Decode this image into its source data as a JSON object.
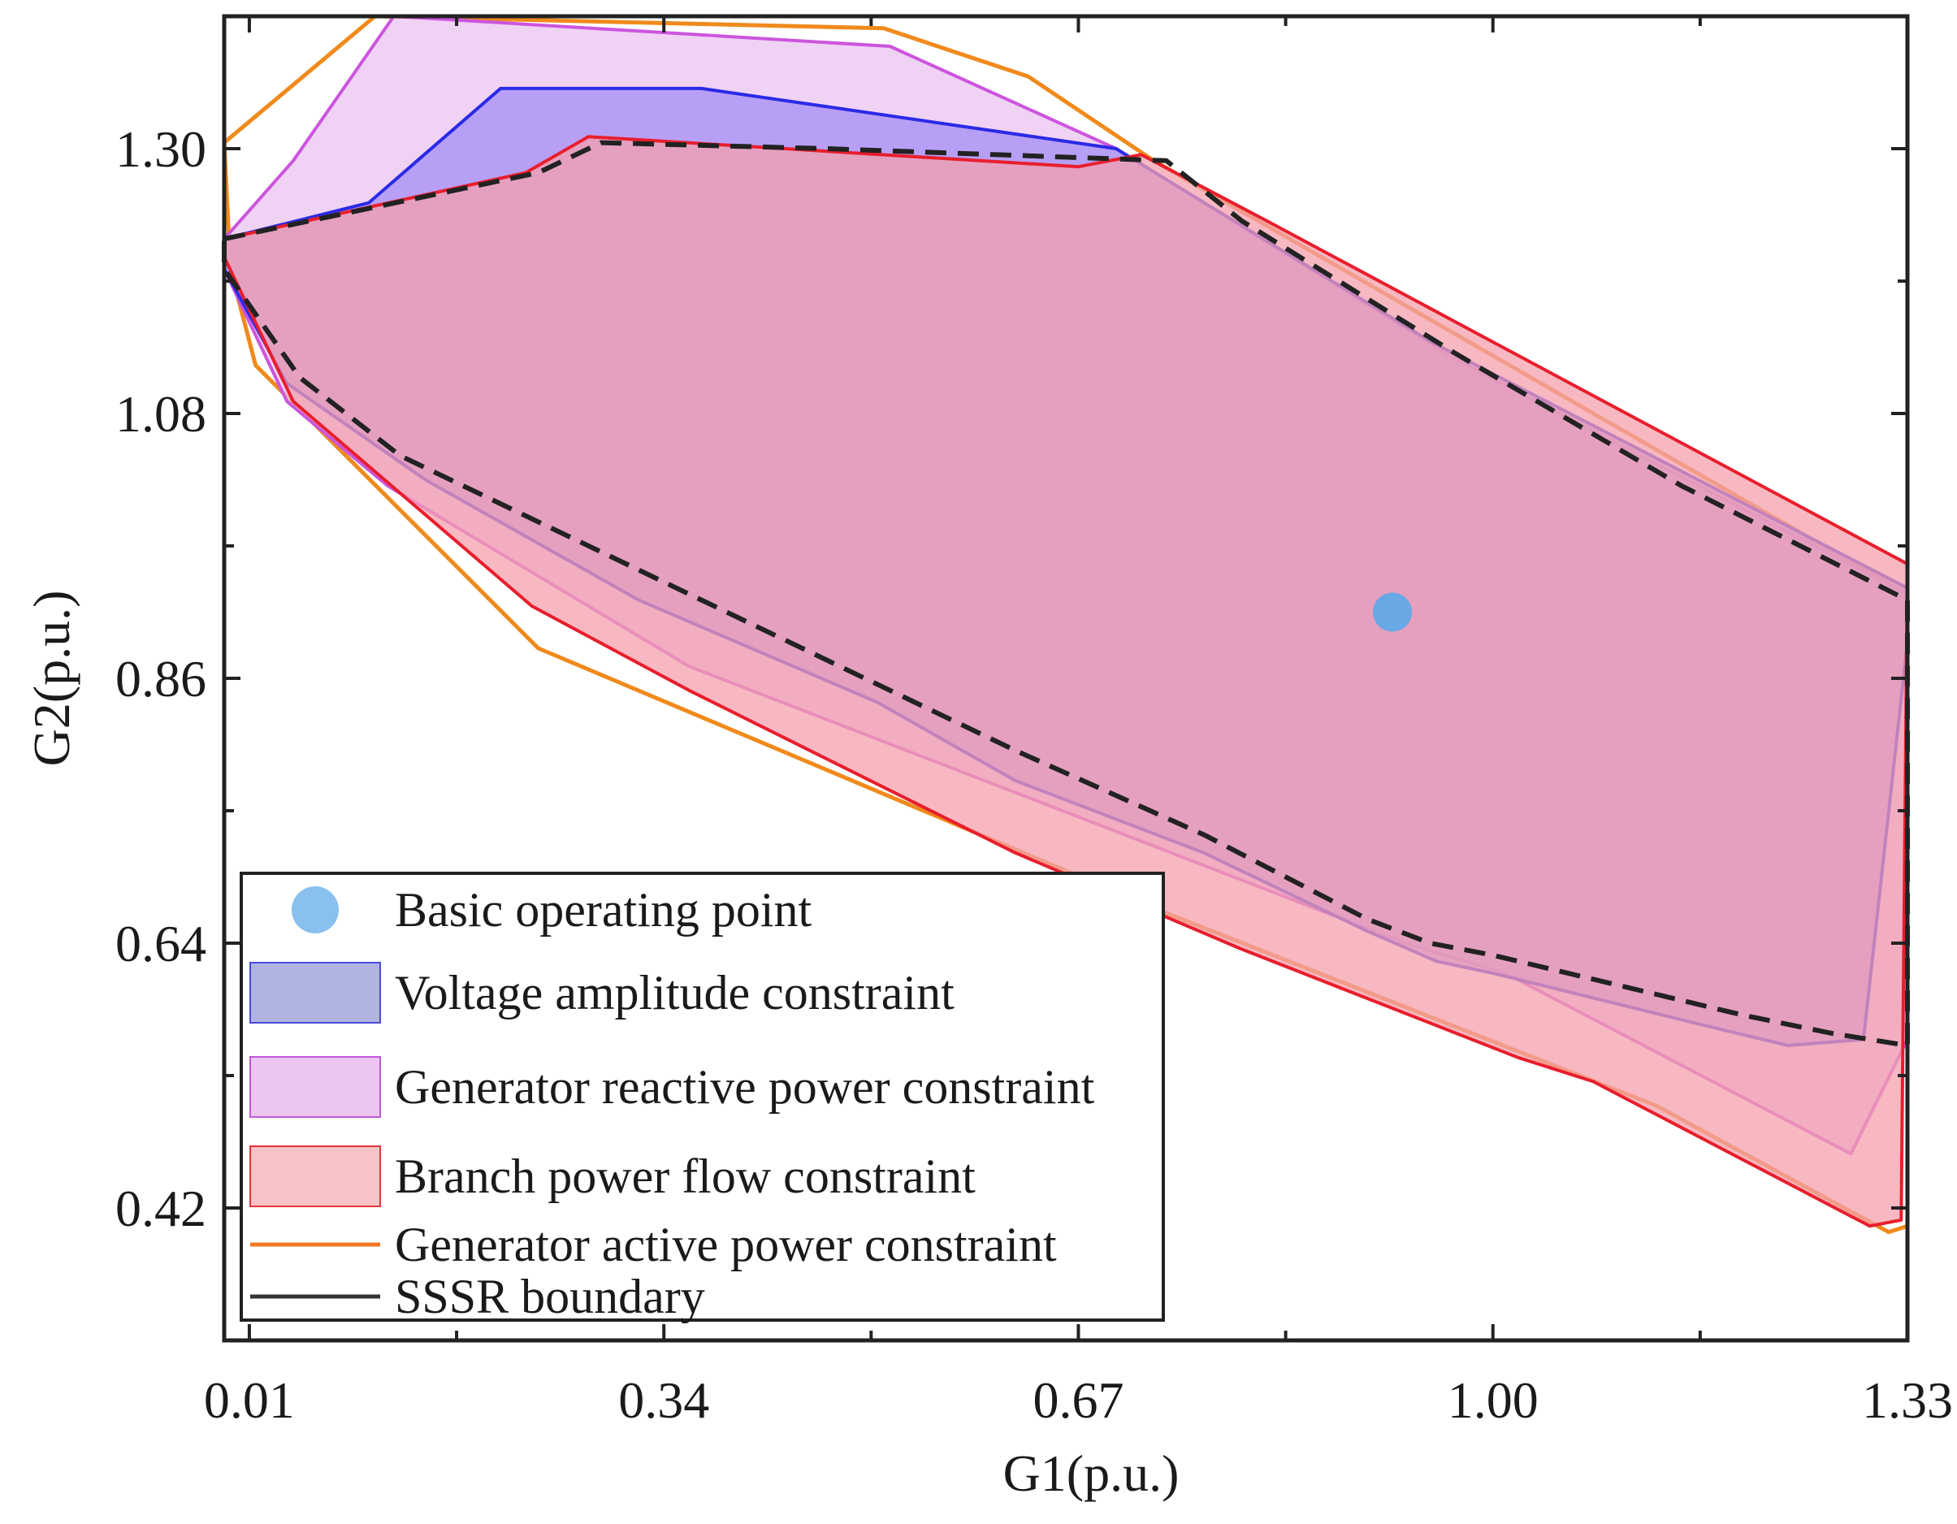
{
  "chart_data": {
    "type": "area",
    "title": "",
    "xlabel": "G1(p.u.)",
    "ylabel": "G2(p.u.)",
    "xlim": [
      -0.01,
      1.33
    ],
    "ylim": [
      0.31,
      1.41
    ],
    "xticks": [
      {
        "value": 0.01,
        "label": "0.01"
      },
      {
        "value": 0.34,
        "label": "0.34"
      },
      {
        "value": 0.67,
        "label": "0.67"
      },
      {
        "value": 1.0,
        "label": "1.00"
      },
      {
        "value": 1.33,
        "label": "1.33"
      }
    ],
    "yticks": [
      {
        "value": 0.42,
        "label": "0.42"
      },
      {
        "value": 0.64,
        "label": "0.64"
      },
      {
        "value": 0.86,
        "label": "0.86"
      },
      {
        "value": 1.08,
        "label": "1.08"
      },
      {
        "value": 1.3,
        "label": "1.30"
      }
    ],
    "x_minor_ticks": [
      0.175,
      0.505,
      0.835,
      1.165
    ],
    "y_minor_ticks": [
      0.53,
      0.75,
      0.97,
      1.19
    ],
    "grid": false,
    "legend_position": "bottom-left",
    "series": [
      {
        "name": "Generator active power constraint",
        "kind": "line",
        "color": "#f08a1c",
        "points": [
          [
            -0.01,
            1.305
          ],
          [
            0.11,
            1.41
          ],
          [
            0.515,
            1.4
          ],
          [
            0.63,
            1.36
          ],
          [
            0.73,
            1.29
          ],
          [
            1.33,
            0.93
          ],
          [
            1.33,
            0.405
          ],
          [
            1.315,
            0.4
          ],
          [
            1.13,
            0.505
          ],
          [
            0.74,
            0.665
          ],
          [
            0.24,
            0.885
          ],
          [
            0.015,
            1.12
          ],
          [
            -0.005,
            1.2
          ],
          [
            -0.01,
            1.305
          ]
        ]
      },
      {
        "name": "Generator reactive power constraint",
        "kind": "area",
        "color": "#cc55dd",
        "fill": "#ebc3f2",
        "points": [
          [
            -0.01,
            1.225
          ],
          [
            0.045,
            1.29
          ],
          [
            0.125,
            1.41
          ],
          [
            0.52,
            1.385
          ],
          [
            0.7,
            1.3
          ],
          [
            0.97,
            1.125
          ],
          [
            1.33,
            0.93
          ],
          [
            1.33,
            0.56
          ],
          [
            1.285,
            0.465
          ],
          [
            1.01,
            0.615
          ],
          [
            0.93,
            0.64
          ],
          [
            0.36,
            0.87
          ],
          [
            0.12,
            1.02
          ],
          [
            0.04,
            1.09
          ],
          [
            -0.01,
            1.2
          ],
          [
            -0.01,
            1.225
          ]
        ]
      },
      {
        "name": "Voltage amplitude constraint",
        "kind": "area",
        "color": "#2a2ae6",
        "fill": "#a58df5",
        "points": [
          [
            -0.01,
            1.225
          ],
          [
            0.105,
            1.255
          ],
          [
            0.21,
            1.35
          ],
          [
            0.37,
            1.35
          ],
          [
            0.7,
            1.3
          ],
          [
            0.95,
            1.14
          ],
          [
            1.33,
            0.935
          ],
          [
            1.33,
            0.89
          ],
          [
            1.295,
            0.56
          ],
          [
            1.235,
            0.555
          ],
          [
            1.175,
            0.57
          ],
          [
            1.0,
            0.615
          ],
          [
            0.955,
            0.625
          ],
          [
            0.9,
            0.65
          ],
          [
            0.77,
            0.715
          ],
          [
            0.62,
            0.775
          ],
          [
            0.51,
            0.84
          ],
          [
            0.32,
            0.925
          ],
          [
            0.15,
            1.025
          ],
          [
            0.04,
            1.105
          ],
          [
            -0.01,
            1.2
          ],
          [
            -0.01,
            1.225
          ]
        ]
      },
      {
        "name": "Branch power flow constraint",
        "kind": "area",
        "color": "#e81e2c",
        "fill": "#f4a0ad",
        "points": [
          [
            -0.01,
            1.225
          ],
          [
            0.23,
            1.28
          ],
          [
            0.28,
            1.31
          ],
          [
            0.67,
            1.285
          ],
          [
            0.72,
            1.295
          ],
          [
            0.82,
            1.24
          ],
          [
            1.33,
            0.955
          ],
          [
            1.325,
            0.41
          ],
          [
            1.3,
            0.405
          ],
          [
            1.08,
            0.525
          ],
          [
            1.02,
            0.545
          ],
          [
            0.8,
            0.635
          ],
          [
            0.62,
            0.715
          ],
          [
            0.36,
            0.85
          ],
          [
            0.235,
            0.92
          ],
          [
            0.045,
            1.09
          ],
          [
            -0.01,
            1.21
          ],
          [
            -0.01,
            1.225
          ]
        ]
      },
      {
        "name": "SSSR boundary",
        "kind": "line",
        "color": "#222222",
        "dashed": true,
        "points": [
          [
            -0.01,
            1.225
          ],
          [
            0.24,
            1.28
          ],
          [
            0.29,
            1.305
          ],
          [
            0.47,
            1.3
          ],
          [
            0.74,
            1.29
          ],
          [
            0.8,
            1.24
          ],
          [
            0.97,
            1.13
          ],
          [
            1.15,
            1.02
          ],
          [
            1.33,
            0.925
          ],
          [
            1.33,
            0.555
          ],
          [
            1.27,
            0.565
          ],
          [
            1.2,
            0.58
          ],
          [
            1.0,
            0.63
          ],
          [
            0.95,
            0.64
          ],
          [
            0.9,
            0.66
          ],
          [
            0.77,
            0.73
          ],
          [
            0.62,
            0.8
          ],
          [
            0.33,
            0.945
          ],
          [
            0.13,
            1.045
          ],
          [
            0.05,
            1.11
          ],
          [
            -0.01,
            1.2
          ],
          [
            -0.01,
            1.225
          ]
        ]
      },
      {
        "name": "Basic operating point",
        "kind": "point",
        "color": "#5aa8e8",
        "x": 0.92,
        "y": 0.915
      }
    ],
    "legend": [
      {
        "label": "Basic operating point",
        "kind": "dot",
        "color": "#89c0ee"
      },
      {
        "label": "Voltage amplitude constraint",
        "kind": "box",
        "fill": "#b0b4e0",
        "stroke": "#4a4ae0"
      },
      {
        "label": "Generator reactive power constraint",
        "kind": "box",
        "fill": "#ebc6ef",
        "stroke": "#c058d8"
      },
      {
        "label": "Branch power flow constraint",
        "kind": "box",
        "fill": "#f7c3c6",
        "stroke": "#e8343c"
      },
      {
        "label": "Generator active power constraint",
        "kind": "line",
        "stroke": "#f07a28"
      },
      {
        "label": "SSSR boundary",
        "kind": "line",
        "stroke": "#333333"
      }
    ]
  }
}
